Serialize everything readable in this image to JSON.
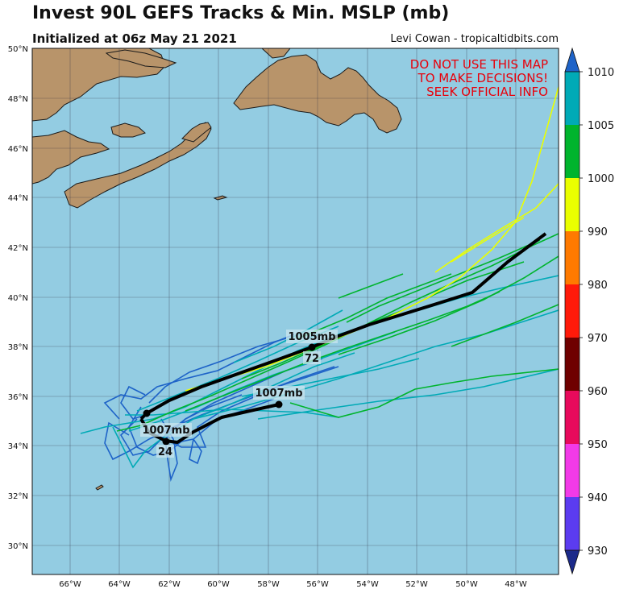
{
  "header": {
    "title": "Invest 90L GEFS Tracks & Min. MSLP (mb)",
    "subtitle": "Initialized at 06z May 21 2021",
    "credit": "Levi Cowan - tropicaltidbits.com"
  },
  "warning": {
    "line1": "DO NOT USE THIS MAP",
    "line2": "TO MAKE DECISIONS!",
    "line3": "SEEK OFFICIAL INFO",
    "color": "#e8000b"
  },
  "map": {
    "lon_range": [
      -67.5,
      -46.3
    ],
    "lat_range": [
      28.8,
      50
    ],
    "lat_labels": [
      "50°N",
      "48°N",
      "46°N",
      "44°N",
      "42°N",
      "40°N",
      "38°N",
      "36°N",
      "34°N",
      "32°N",
      "30°N"
    ],
    "lon_labels": [
      "66°W",
      "64°W",
      "62°W",
      "60°W",
      "58°W",
      "56°W",
      "54°W",
      "52°W",
      "50°W",
      "48°W"
    ],
    "ocean_color": "#93cce2",
    "land_color": "#b8946a"
  },
  "annotations": {
    "mean_north_label": "1005mb",
    "mean_north_hour": "72",
    "mean_south_label": "1007mb",
    "mean_south_hour": "24",
    "mean_east_label": "1007mb"
  },
  "colorbar": {
    "levels": [
      "1010",
      "1005",
      "1000",
      "990",
      "980",
      "970",
      "960",
      "950",
      "940",
      "930"
    ],
    "colors": [
      "#1b2a8a",
      "#5b3cf0",
      "#f23ae8",
      "#e80a5c",
      "#6f0000",
      "#ff1a0a",
      "#ff7a00",
      "#eaff00",
      "#00b42d",
      "#00aab6",
      "#1e63c8"
    ]
  }
}
